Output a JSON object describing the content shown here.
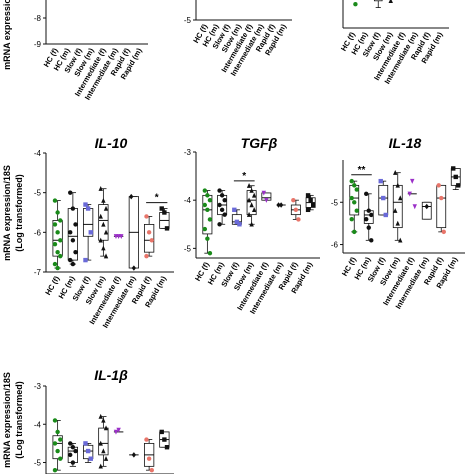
{
  "figure": {
    "ylabel_main": "mRNA expression/18S",
    "ylabel_sub": "(Log transformed)",
    "categories": [
      "HC (f)",
      "HC (m)",
      "Slow (f)",
      "Slow (m)",
      "Intermediate (f)",
      "Intermediate (m)",
      "Rapid (f)",
      "Rapid (m)"
    ],
    "colors": {
      "HC (f)": "#1a8a1a",
      "HC (m)": "#111111",
      "Slow (f)": "#6a6ad8",
      "Slow (m)": "#111111",
      "Intermediate (f)": "#9b30c8",
      "Intermediate (m)": "#111111",
      "Rapid (f)": "#e8756a",
      "Rapid (m)": "#111111"
    }
  },
  "chart_data": [
    {
      "type": "box",
      "title": "",
      "ylim": [
        -9,
        -5
      ],
      "yticks": [
        -9,
        -8
      ],
      "ytick_labels": [
        "-9",
        "-8"
      ],
      "groups": [
        {
          "category": "HC (f)",
          "points": [
            -5.1,
            -5.3
          ]
        },
        {
          "category": "HC (m)",
          "points": [
            -5.1,
            -5.3,
            -5.6
          ],
          "box": [
            -5.4,
            -5.2,
            -5.1
          ],
          "whisker": [
            -5.8,
            -5.0
          ]
        },
        {
          "category": "Slow (f)",
          "points": []
        },
        {
          "category": "Slow (m)",
          "points": [
            -5.1
          ]
        },
        {
          "category": "Intermediate (f)",
          "points": [
            -5.0
          ]
        },
        {
          "category": "Intermediate (m)",
          "points": [
            -5.0
          ]
        },
        {
          "category": "Rapid (f)",
          "points": [
            -5.1,
            -5.05
          ]
        },
        {
          "category": "Rapid (m)",
          "points": [
            -5.05
          ]
        }
      ],
      "annotations": []
    },
    {
      "type": "box",
      "title": "",
      "ylim": [
        -5,
        -3
      ],
      "yticks": [
        -5
      ],
      "ytick_labels": [
        "-5"
      ],
      "groups": [
        {
          "category": "HC (f)",
          "points": [
            -3.3,
            -3.5,
            -3.7
          ],
          "box": [
            -3.5,
            -3.3,
            -3.1
          ],
          "whisker": [
            -3.7,
            -3.0
          ]
        },
        {
          "category": "HC (m)",
          "points": [
            -3.3,
            -3.6
          ]
        },
        {
          "category": "Slow (f)",
          "points": [
            -3.1
          ]
        },
        {
          "category": "Slow (m)",
          "points": []
        },
        {
          "category": "Intermediate (f)",
          "points": []
        },
        {
          "category": "Intermediate (m)",
          "points": []
        },
        {
          "category": "Rapid (f)",
          "points": []
        },
        {
          "category": "Rapid (m)",
          "points": []
        }
      ],
      "annotations": []
    },
    {
      "type": "box",
      "title": "",
      "ylim": [
        -7,
        -5
      ],
      "yticks": [
        -6
      ],
      "ytick_labels": [
        "-6"
      ],
      "groups": [
        {
          "category": "HC (f)",
          "points": [
            -5.9,
            -6.1,
            -6.3
          ]
        },
        {
          "category": "HC (m)",
          "points": [
            -6.0,
            -6.1,
            -6.15
          ]
        },
        {
          "category": "Slow (f)",
          "points": [
            -5.95,
            -6.1
          ],
          "box": [
            -6.2,
            -6.0,
            -5.8
          ],
          "whisker": [
            -6.4,
            -5.7
          ]
        },
        {
          "category": "Slow (m)",
          "points": [
            -6.0,
            -6.2
          ]
        },
        {
          "category": "Intermediate (f)",
          "points": [
            -5.95
          ]
        },
        {
          "category": "Intermediate (m)",
          "points": []
        },
        {
          "category": "Rapid (f)",
          "points": []
        },
        {
          "category": "Rapid (m)",
          "points": []
        }
      ],
      "annotations": []
    },
    {
      "type": "box",
      "title": "IL-10",
      "ylim": [
        -7,
        -4
      ],
      "yticks": [
        -7,
        -6,
        -5,
        -4
      ],
      "ytick_labels": [
        "-7",
        "-6",
        "-5",
        "-4"
      ],
      "groups": [
        {
          "category": "HC (f)",
          "box": [
            -6.6,
            -6.2,
            -5.7
          ],
          "whisker": [
            -6.9,
            -5.2
          ],
          "points": [
            -5.2,
            -5.5,
            -5.7,
            -5.8,
            -6.0,
            -6.2,
            -6.3,
            -6.5,
            -6.6,
            -6.8,
            -6.9
          ]
        },
        {
          "category": "HC (m)",
          "box": [
            -6.7,
            -6.1,
            -5.4
          ],
          "whisker": [
            -6.8,
            -5.0
          ],
          "points": [
            -5.0,
            -5.4,
            -5.8,
            -6.0,
            -6.2,
            -6.5,
            -6.7,
            -6.8
          ]
        },
        {
          "category": "Slow (f)",
          "box": [
            -6.1,
            -5.8,
            -5.4
          ],
          "whisker": [
            -6.7,
            -5.3
          ],
          "points": [
            -5.3,
            -5.4,
            -6.0,
            -6.7
          ]
        },
        {
          "category": "Slow (m)",
          "box": [
            -6.2,
            -5.7,
            -5.3
          ],
          "whisker": [
            -6.6,
            -4.9
          ],
          "points": [
            -4.9,
            -5.2,
            -5.4,
            -5.6,
            -5.8,
            -6.0,
            -6.2,
            -6.4,
            -6.6
          ]
        },
        {
          "category": "Intermediate (f)",
          "median": -6.1,
          "points": [
            -6.1,
            -6.1,
            -6.1
          ]
        },
        {
          "category": "Intermediate (m)",
          "box": [
            -6.9,
            -6.0,
            -5.1
          ],
          "whisker": [
            -6.9,
            -5.1
          ],
          "points": [
            -5.1,
            -6.9
          ]
        },
        {
          "category": "Rapid (f)",
          "box": [
            -6.5,
            -6.2,
            -5.8
          ],
          "whisker": [
            -6.6,
            -5.6
          ],
          "points": [
            -5.6,
            -6.0,
            -6.2,
            -6.6
          ]
        },
        {
          "category": "Rapid (m)",
          "box": [
            -5.9,
            -5.7,
            -5.5
          ],
          "whisker": [
            -5.9,
            -5.4
          ],
          "points": [
            -5.4,
            -5.5,
            -5.9
          ]
        }
      ],
      "annotations": [
        {
          "text": "*",
          "from": "Rapid (f)",
          "to": "Rapid (m)",
          "y": -5.25
        }
      ]
    },
    {
      "type": "box",
      "title": "TGFβ",
      "ylim": [
        -5.2,
        -3.0
      ],
      "yticks": [
        -5,
        -4,
        -3
      ],
      "ytick_labels": [
        "-5",
        "-4",
        "-3"
      ],
      "groups": [
        {
          "category": "HC (f)",
          "box": [
            -4.7,
            -4.2,
            -3.9
          ],
          "whisker": [
            -5.1,
            -3.8
          ],
          "points": [
            -3.8,
            -3.9,
            -4.0,
            -4.1,
            -4.2,
            -4.4,
            -4.6,
            -4.8,
            -5.1
          ]
        },
        {
          "category": "HC (m)",
          "box": [
            -4.3,
            -4.1,
            -3.9
          ],
          "whisker": [
            -4.5,
            -3.8
          ],
          "points": [
            -3.8,
            -3.9,
            -4.0,
            -4.1,
            -4.2,
            -4.3,
            -4.5
          ]
        },
        {
          "category": "Slow (f)",
          "box": [
            -4.5,
            -4.45,
            -4.3
          ],
          "whisker": [
            -4.5,
            -4.2
          ],
          "points": [
            -4.2,
            -4.45,
            -4.5
          ]
        },
        {
          "category": "Slow (m)",
          "box": [
            -4.3,
            -4.0,
            -3.8
          ],
          "whisker": [
            -4.5,
            -3.7
          ],
          "points": [
            -3.7,
            -3.8,
            -3.9,
            -4.0,
            -4.1,
            -4.2,
            -4.3,
            -4.5
          ]
        },
        {
          "category": "Intermediate (f)",
          "box": [
            -4.0,
            -3.95,
            -3.85
          ],
          "whisker": [
            -4.0,
            -3.85
          ],
          "points": [
            -3.85,
            -4.0
          ]
        },
        {
          "category": "Intermediate (m)",
          "median": -4.1,
          "points": [
            -4.1,
            -4.1
          ]
        },
        {
          "category": "Rapid (f)",
          "box": [
            -4.3,
            -4.2,
            -4.1
          ],
          "whisker": [
            -4.4,
            -4.0
          ],
          "points": [
            -4.0,
            -4.2,
            -4.4
          ]
        },
        {
          "category": "Rapid (m)",
          "box": [
            -4.15,
            -4.05,
            -3.95
          ],
          "whisker": [
            -4.2,
            -3.9
          ],
          "points": [
            -3.9,
            -4.0,
            -4.1,
            -4.2
          ]
        }
      ],
      "annotations": [
        {
          "text": "*",
          "from": "Slow (f)",
          "to": "Slow (m)",
          "y": -3.6
        }
      ]
    },
    {
      "type": "box",
      "title": "IL-18",
      "ylim": [
        -6.2,
        -4.0
      ],
      "yticks": [
        -6,
        -5
      ],
      "ytick_labels": [
        "-6",
        "-5"
      ],
      "groups": [
        {
          "category": "HC (f)",
          "box": [
            -5.3,
            -4.9,
            -4.6
          ],
          "whisker": [
            -5.7,
            -4.5
          ],
          "points": [
            -4.5,
            -4.6,
            -4.7,
            -4.9,
            -5.0,
            -5.2,
            -5.4,
            -5.7
          ]
        },
        {
          "category": "HC (m)",
          "box": [
            -5.5,
            -5.3,
            -5.2
          ],
          "whisker": [
            -5.9,
            -4.8
          ],
          "points": [
            -4.8,
            -5.2,
            -5.3,
            -5.4,
            -5.6,
            -5.9
          ]
        },
        {
          "category": "Slow (f)",
          "box": [
            -5.3,
            -4.9,
            -4.6
          ],
          "whisker": [
            -5.3,
            -4.5
          ],
          "points": [
            -4.5,
            -4.9,
            -5.3
          ]
        },
        {
          "category": "Slow (m)",
          "box": [
            -5.6,
            -5.0,
            -4.6
          ],
          "whisker": [
            -5.9,
            -4.3
          ],
          "points": [
            -4.3,
            -4.6,
            -4.9,
            -5.2,
            -5.5,
            -5.9
          ]
        },
        {
          "category": "Intermediate (f)",
          "median": -4.8,
          "points": [
            -4.8,
            -4.5,
            -5.1
          ]
        },
        {
          "category": "Intermediate (m)",
          "box": [
            -5.4,
            -5.1,
            -5.0
          ],
          "whisker": [
            -5.4,
            -5.0
          ],
          "points": [
            -5.1
          ]
        },
        {
          "category": "Rapid (f)",
          "box": [
            -5.6,
            -4.9,
            -4.6
          ],
          "whisker": [
            -5.7,
            -4.6
          ],
          "points": [
            -4.6,
            -4.9,
            -5.7
          ]
        },
        {
          "category": "Rapid (m)",
          "box": [
            -4.6,
            -4.4,
            -4.2
          ],
          "whisker": [
            -4.7,
            -4.2
          ],
          "points": [
            -4.2,
            -4.4,
            -4.6
          ]
        }
      ],
      "annotations": [
        {
          "text": "**",
          "from": "HC (f)",
          "to": "HC (m)",
          "y": -4.35
        }
      ]
    },
    {
      "type": "box",
      "title": "IL-1β",
      "ylim": [
        -5.3,
        -3.0
      ],
      "yticks": [
        -5,
        -4,
        -3
      ],
      "ytick_labels": [
        "-5",
        "-4",
        "-3"
      ],
      "groups": [
        {
          "category": "HC (f)",
          "box": [
            -4.9,
            -4.5,
            -4.3
          ],
          "whisker": [
            -5.2,
            -3.9
          ],
          "points": [
            -3.9,
            -4.2,
            -4.4,
            -4.5,
            -4.7,
            -4.9,
            -5.2
          ]
        },
        {
          "category": "HC (m)",
          "box": [
            -5.0,
            -4.7,
            -4.6
          ],
          "whisker": [
            -5.1,
            -4.5
          ],
          "points": [
            -4.5,
            -4.6,
            -4.7,
            -4.8,
            -5.0
          ]
        },
        {
          "category": "Slow (f)",
          "box": [
            -4.9,
            -4.7,
            -4.55
          ],
          "whisker": [
            -5.0,
            -4.5
          ],
          "points": [
            -4.5,
            -4.7,
            -4.9
          ]
        },
        {
          "category": "Slow (m)",
          "box": [
            -4.8,
            -4.5,
            -4.1
          ],
          "whisker": [
            -5.1,
            -3.8
          ],
          "points": [
            -3.8,
            -3.9,
            -4.1,
            -4.5,
            -4.7,
            -4.9,
            -5.1
          ]
        },
        {
          "category": "Intermediate (f)",
          "median": -4.2,
          "points": [
            -4.2,
            -4.15
          ]
        },
        {
          "category": "Intermediate (m)",
          "median": -4.8,
          "points": [
            -4.8
          ]
        },
        {
          "category": "Rapid (f)",
          "box": [
            -5.1,
            -4.8,
            -4.5
          ],
          "whisker": [
            -5.2,
            -4.4
          ],
          "points": [
            -4.4,
            -4.9,
            -5.2
          ]
        },
        {
          "category": "Rapid (m)",
          "box": [
            -4.6,
            -4.4,
            -4.2
          ],
          "whisker": [
            -4.6,
            -4.2
          ],
          "points": [
            -4.2,
            -4.4,
            -4.6
          ]
        }
      ],
      "annotations": []
    }
  ]
}
